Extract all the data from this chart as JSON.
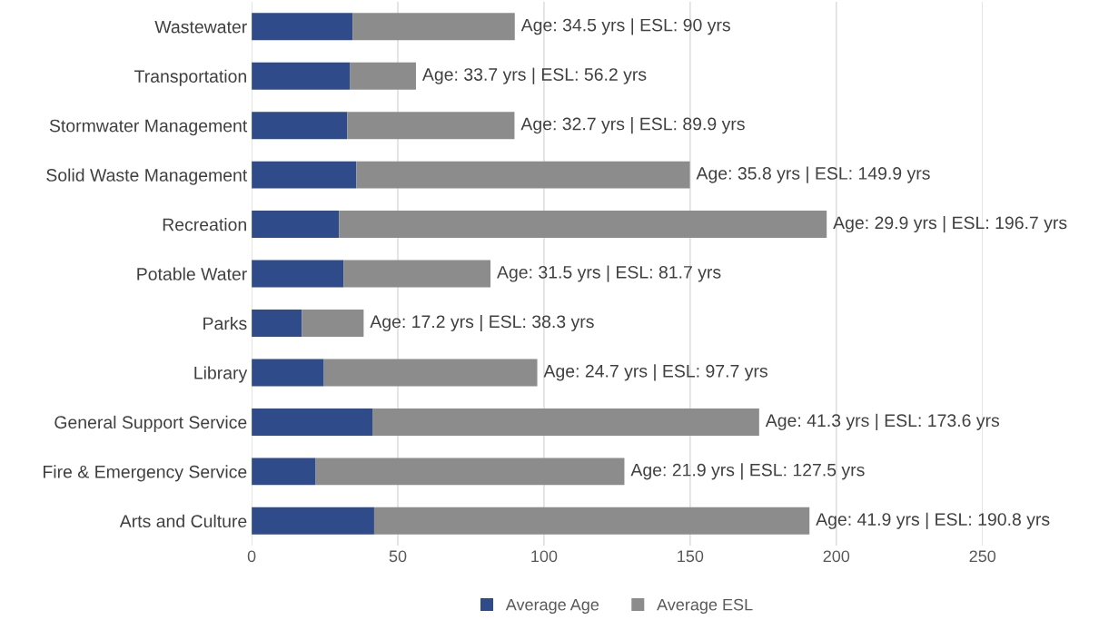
{
  "chart_data": {
    "type": "bar",
    "orientation": "horizontal",
    "stacked": true,
    "categories": [
      "Wastewater",
      "Transportation",
      "Stormwater Management",
      "Solid Waste Management",
      "Recreation",
      "Potable Water",
      "Parks",
      "Library",
      "General Support Service",
      "Fire & Emergency Service",
      "Arts and Culture"
    ],
    "series": [
      {
        "name": "Average Age",
        "color": "#2f4b8a",
        "values": [
          34.5,
          33.7,
          32.7,
          35.8,
          29.9,
          31.5,
          17.2,
          24.7,
          41.3,
          21.9,
          41.9
        ]
      },
      {
        "name": "Average ESL",
        "color": "#8c8c8c",
        "values": [
          55.5,
          22.5,
          57.2,
          114.1,
          166.8,
          50.2,
          21.1,
          73.0,
          132.3,
          105.6,
          148.9
        ],
        "value_labels": [
          "Age: 34.5 yrs | ESL: 90 yrs",
          "Age: 33.7 yrs | ESL: 56.2 yrs",
          "Age: 32.7 yrs | ESL: 89.9 yrs",
          "Age: 35.8 yrs | ESL: 149.9 yrs",
          "Age: 29.9 yrs | ESL: 196.7 yrs",
          "Age: 31.5 yrs | ESL: 81.7 yrs",
          "Age: 17.2 yrs | ESL: 38.3 yrs",
          "Age: 24.7 yrs | ESL: 97.7 yrs",
          "Age: 41.3 yrs | ESL: 173.6 yrs",
          "Age: 21.9 yrs | ESL: 127.5 yrs",
          "Age: 41.9 yrs | ESL: 190.8 yrs"
        ]
      }
    ],
    "xlim": [
      0,
      250
    ],
    "xticks": [
      0,
      50,
      100,
      150,
      200,
      250
    ],
    "grid": "x",
    "legend": "bottom"
  }
}
